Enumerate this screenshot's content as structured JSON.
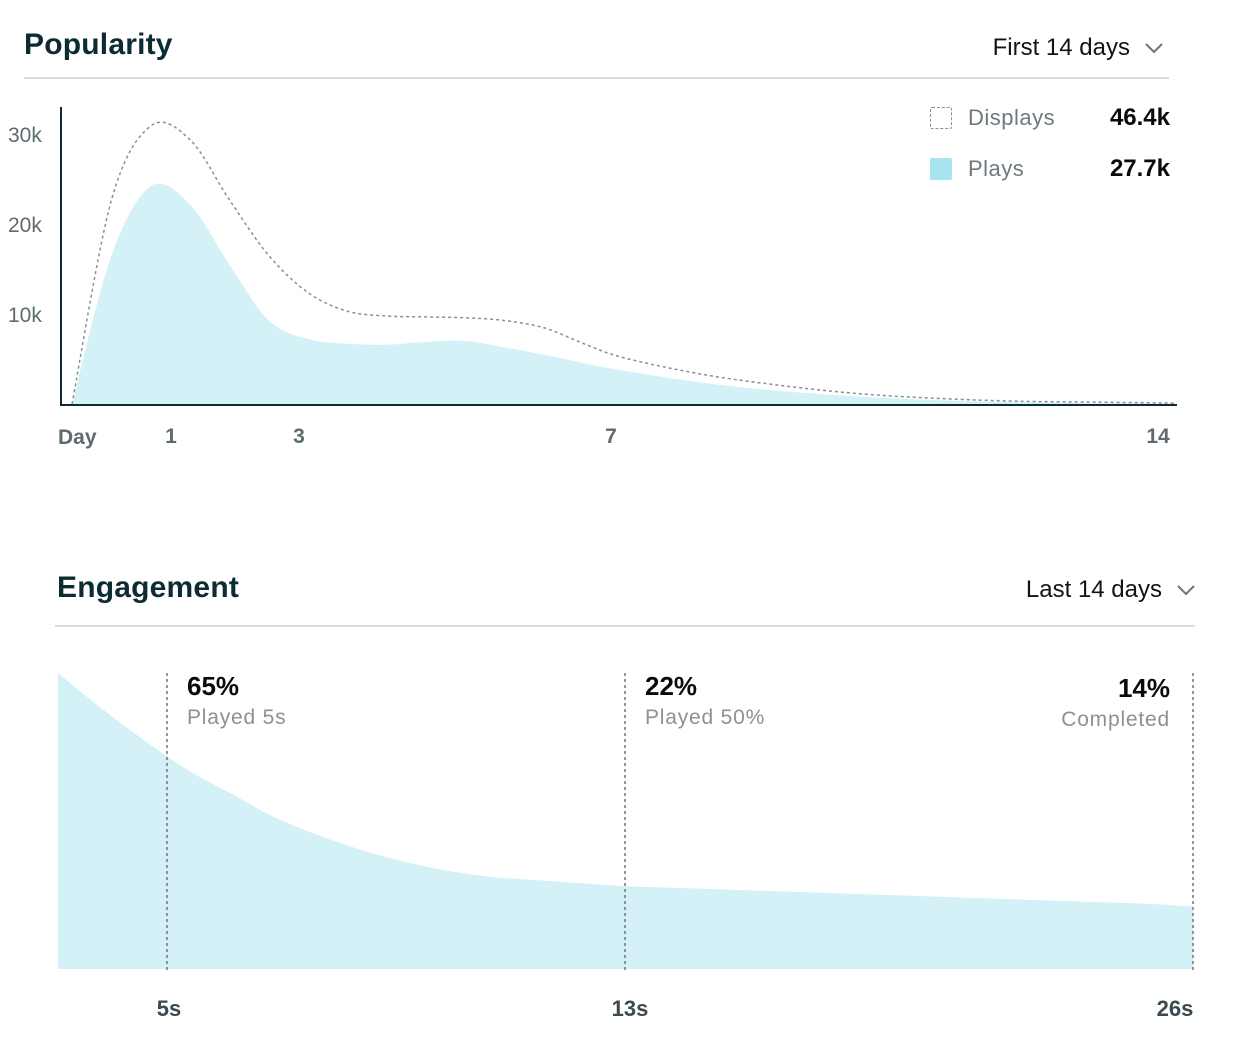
{
  "popularity": {
    "title": "Popularity",
    "range_label": "First 14 days",
    "legend": [
      {
        "label": "Displays",
        "value": "46.4k",
        "style": "dashed"
      },
      {
        "label": "Plays",
        "value": "27.7k",
        "style": "filled"
      }
    ],
    "y_ticks": [
      "30k",
      "20k",
      "10k"
    ],
    "x_label": "Day",
    "x_ticks": [
      "1",
      "3",
      "7",
      "14"
    ]
  },
  "engagement": {
    "title": "Engagement",
    "range_label": "Last 14 days",
    "markers": [
      {
        "percent": "65%",
        "label": "Played 5s"
      },
      {
        "percent": "22%",
        "label": "Played 50%"
      },
      {
        "percent": "14%",
        "label": "Completed"
      }
    ],
    "x_ticks": [
      "5s",
      "13s",
      "26s"
    ]
  },
  "colors": {
    "plays_fill": "#d4f1f7",
    "displays_line": "#8a8f93",
    "axis": "#0c2b33",
    "tick_text": "#5d6a70"
  },
  "chart_data": [
    {
      "type": "area",
      "ylim": [
        0,
        30000
      ],
      "x": [
        0,
        0.5,
        1,
        1.5,
        2,
        2.5,
        3,
        3.5,
        4,
        4.5,
        5,
        5.5,
        6,
        6.5,
        7,
        8,
        9,
        10,
        11,
        12,
        13,
        14
      ],
      "series": [
        {
          "name": "Displays",
          "values": [
            0,
            22000,
            30000,
            28500,
            22000,
            16000,
            12000,
            10000,
            9500,
            9400,
            9300,
            9000,
            8200,
            6500,
            5000,
            3200,
            2000,
            1100,
            600,
            300,
            200,
            100
          ]
        },
        {
          "name": "Plays",
          "values": [
            0,
            16000,
            23500,
            21500,
            15000,
            9000,
            7000,
            6500,
            6400,
            6700,
            6800,
            6100,
            5300,
            4400,
            3600,
            2300,
            1400,
            800,
            400,
            200,
            120,
            60
          ]
        }
      ]
    },
    {
      "type": "area",
      "x": [
        0,
        1,
        2,
        3,
        4,
        5,
        6,
        7,
        8,
        9,
        10,
        11,
        12,
        13,
        15,
        17,
        19,
        21,
        23,
        25,
        26
      ],
      "series": [
        {
          "name": "",
          "values": [
            100,
            88,
            77,
            67,
            59,
            51,
            45,
            40,
            36,
            33,
            31,
            30,
            29,
            28,
            27,
            26,
            25,
            24,
            23,
            22,
            21
          ]
        }
      ]
    }
  ]
}
